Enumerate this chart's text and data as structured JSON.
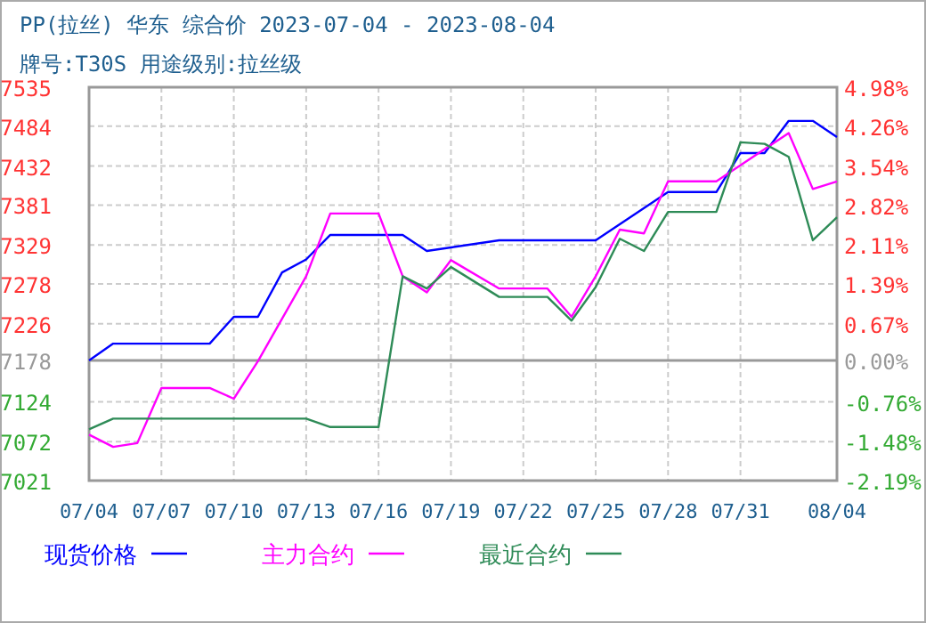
{
  "chart_data": {
    "type": "line",
    "title": "PP(拉丝) 华东 综合价 2023-07-04 - 2023-08-04",
    "subtitle": "牌号:T30S 用途级别:拉丝级",
    "xlim": [
      "--07-04",
      "--08-04"
    ],
    "xticks": [
      {
        "value": "--07-04",
        "label": "07/04"
      },
      {
        "value": "--07-07",
        "label": "07/07"
      },
      {
        "value": "--07-10",
        "label": "07/10"
      },
      {
        "value": "--07-13",
        "label": "07/13"
      },
      {
        "value": "--07-16",
        "label": "07/16"
      },
      {
        "value": "--07-19",
        "label": "07/19"
      },
      {
        "value": "--07-22",
        "label": "07/22"
      },
      {
        "value": "--07-25",
        "label": "07/25"
      },
      {
        "value": "--07-28",
        "label": "07/28"
      },
      {
        "value": "--07-31",
        "label": "07/31"
      },
      {
        "value": "--08-04",
        "label": "08/04"
      }
    ],
    "ylim": [
      7021,
      7535
    ],
    "yticks": [
      7021,
      7072,
      7124,
      7178,
      7226,
      7278,
      7329,
      7381,
      7432,
      7484,
      7535
    ],
    "y2lim": [
      -2.19,
      4.98
    ],
    "y2ticks": [
      {
        "value": -2.19,
        "label": "-2.19%"
      },
      {
        "value": -1.48,
        "label": "-1.48%"
      },
      {
        "value": -0.76,
        "label": "-0.76%"
      },
      {
        "value": 0,
        "label": "0.00%"
      },
      {
        "value": 0.67,
        "label": "0.67%"
      },
      {
        "value": 1.39,
        "label": "1.39%"
      },
      {
        "value": 2.11,
        "label": "2.11%"
      },
      {
        "value": 2.82,
        "label": "2.82%"
      },
      {
        "value": 3.54,
        "label": "3.54%"
      },
      {
        "value": 4.26,
        "label": "4.26%"
      },
      {
        "value": 4.98,
        "label": "4.98%"
      }
    ],
    "ref_lines": [
      {
        "axis": "y",
        "value": 7178,
        "color": "#999999"
      }
    ],
    "grid": true,
    "legend": "bottom",
    "marker": "none",
    "line_style": "solid",
    "series": [
      {
        "name": "现货价格",
        "color": "#0000ff",
        "x": [
          "--07-04",
          "--07-05",
          "--07-09",
          "--07-10",
          "--07-11",
          "--07-12",
          "--07-13",
          "--07-14",
          "--07-17",
          "--07-18",
          "--07-21",
          "--07-25",
          "--07-28",
          "--07-30",
          "--07-31",
          "--08-01",
          "--08-02",
          "--08-03",
          "--08-04"
        ],
        "values": [
          7178,
          7200,
          7200,
          7235,
          7235,
          7293,
          7310,
          7342,
          7342,
          7321,
          7335,
          7335,
          7398,
          7398,
          7449,
          7449,
          7491,
          7491,
          7470
        ]
      },
      {
        "name": "主力合约",
        "color": "#ff00ff",
        "x": [
          "--07-04",
          "--07-05",
          "--07-06",
          "--07-07",
          "--07-09",
          "--07-10",
          "--07-11",
          "--07-13",
          "--07-14",
          "--07-16",
          "--07-17",
          "--07-18",
          "--07-19",
          "--07-21",
          "--07-23",
          "--07-24",
          "--07-25",
          "--07-26",
          "--07-27",
          "--07-28",
          "--07-30",
          "--08-02",
          "--08-03",
          "--08-04"
        ],
        "values": [
          7081,
          7065,
          7070,
          7142,
          7142,
          7128,
          7177,
          7288,
          7370,
          7370,
          7288,
          7267,
          7309,
          7272,
          7272,
          7235,
          7288,
          7349,
          7344,
          7412,
          7412,
          7475,
          7402,
          7412
        ]
      },
      {
        "name": "最近合约",
        "color": "#2e8b57",
        "x": [
          "--07-04",
          "--07-05",
          "--07-13",
          "--07-14",
          "--07-16",
          "--07-17",
          "--07-18",
          "--07-19",
          "--07-21",
          "--07-23",
          "--07-24",
          "--07-25",
          "--07-26",
          "--07-27",
          "--07-28",
          "--07-30",
          "--07-31",
          "--08-01",
          "--08-02",
          "--08-03",
          "--08-04"
        ],
        "values": [
          7088,
          7102,
          7102,
          7091,
          7091,
          7288,
          7272,
          7300,
          7261,
          7261,
          7230,
          7274,
          7337,
          7321,
          7372,
          7372,
          7463,
          7461,
          7444,
          7335,
          7365
        ]
      }
    ]
  }
}
